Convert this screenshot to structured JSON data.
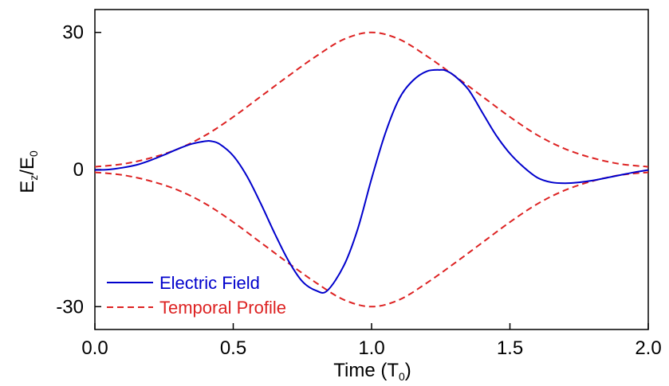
{
  "chart_data": {
    "type": "line",
    "xlabel": {
      "main": "Time (T",
      "sub": "0",
      "close": ")"
    },
    "ylabel": {
      "part1": "E",
      "sub1": "z",
      "part2": "/E",
      "sub2": "0"
    },
    "xlim": [
      0,
      2
    ],
    "ylim": [
      -35,
      35
    ],
    "xticks": [
      0,
      0.5,
      1,
      1.5,
      2
    ],
    "xtick_labels": [
      "0.0",
      "0.5",
      "1.0",
      "1.5",
      "2.0"
    ],
    "yticks": [
      -30,
      0,
      30
    ],
    "ytick_labels": [
      "-30",
      "0",
      "30"
    ],
    "grid": false,
    "legend_position": "bottom-left",
    "series": [
      {
        "name": "Electric Field",
        "color": "#0000cc",
        "style": "solid",
        "x": [
          0.0,
          0.05,
          0.1,
          0.15,
          0.2,
          0.25,
          0.3,
          0.35,
          0.4,
          0.42,
          0.45,
          0.5,
          0.55,
          0.6,
          0.65,
          0.7,
          0.75,
          0.8,
          0.84,
          0.9,
          0.95,
          1.0,
          1.05,
          1.1,
          1.15,
          1.2,
          1.25,
          1.27,
          1.3,
          1.35,
          1.4,
          1.45,
          1.5,
          1.55,
          1.6,
          1.65,
          1.7,
          1.75,
          1.8,
          1.85,
          1.9,
          1.95,
          2.0
        ],
        "y": [
          -0.1,
          0.0,
          0.4,
          1.0,
          2.0,
          3.2,
          4.5,
          5.6,
          6.2,
          6.2,
          5.6,
          3.0,
          -1.5,
          -7.5,
          -14.0,
          -20.0,
          -24.5,
          -26.5,
          -26.5,
          -21.0,
          -13.0,
          -2.0,
          8.0,
          15.5,
          19.5,
          21.5,
          21.8,
          21.6,
          20.5,
          17.5,
          12.5,
          7.5,
          3.5,
          0.5,
          -1.8,
          -2.8,
          -3.0,
          -2.8,
          -2.4,
          -1.8,
          -1.2,
          -0.6,
          -0.1
        ]
      },
      {
        "name": "Temporal Profile",
        "color": "#dd2222",
        "style": "dashed",
        "x": [
          0.0,
          0.1,
          0.2,
          0.3,
          0.4,
          0.5,
          0.6,
          0.7,
          0.8,
          0.9,
          1.0,
          1.1,
          1.2,
          1.3,
          1.4,
          1.5,
          1.6,
          1.7,
          1.8,
          1.9,
          2.0
        ],
        "y": [
          0.6,
          1.2,
          2.5,
          4.5,
          7.5,
          11.5,
          16.0,
          20.5,
          24.8,
          28.5,
          30.0,
          28.5,
          24.8,
          20.5,
          16.0,
          11.5,
          7.5,
          4.5,
          2.5,
          1.2,
          0.6
        ]
      },
      {
        "name": "",
        "color": "#dd2222",
        "style": "dashed",
        "x": [
          0.0,
          0.1,
          0.2,
          0.3,
          0.4,
          0.5,
          0.6,
          0.7,
          0.8,
          0.9,
          1.0,
          1.1,
          1.2,
          1.3,
          1.4,
          1.5,
          1.6,
          1.7,
          1.8,
          1.9,
          2.0
        ],
        "y": [
          -0.6,
          -1.2,
          -2.5,
          -4.5,
          -7.5,
          -11.5,
          -16.0,
          -20.5,
          -24.8,
          -28.5,
          -30.0,
          -28.5,
          -24.8,
          -20.5,
          -16.0,
          -11.5,
          -7.5,
          -4.5,
          -2.5,
          -1.2,
          -0.6
        ]
      }
    ],
    "legend": [
      {
        "label": "Electric Field",
        "color": "#0000cc",
        "style": "solid"
      },
      {
        "label": "Temporal Profile",
        "color": "#dd2222",
        "style": "dashed"
      }
    ]
  }
}
